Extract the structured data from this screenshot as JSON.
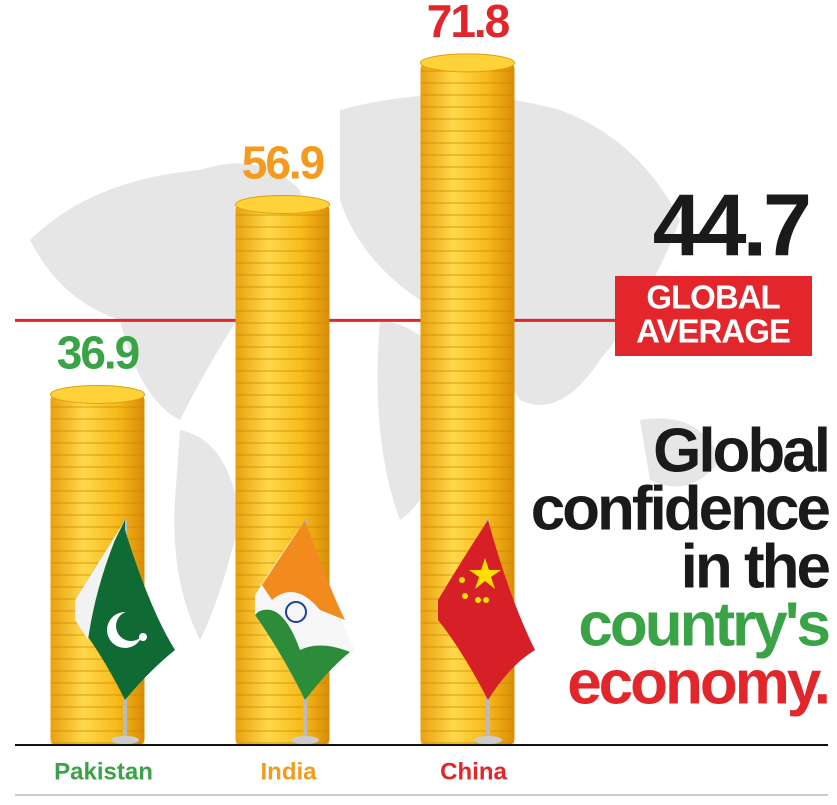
{
  "chart_data": {
    "type": "bar",
    "categories": [
      "Pakistan",
      "India",
      "China"
    ],
    "values": [
      36.9,
      56.9,
      71.8
    ],
    "category_colors": [
      "#3aa346",
      "#f39a1f",
      "#e2262b"
    ],
    "ylim": [
      0,
      78
    ],
    "reference_line": {
      "value": 44.7,
      "label_lines": [
        "GLOBAL",
        "AVERAGE"
      ],
      "color": "#e2262b"
    },
    "title_lines": [
      {
        "text": "Global",
        "color": "#1a1a1a"
      },
      {
        "text": "confidence",
        "color": "#1a1a1a"
      },
      {
        "text": "in the",
        "color": "#1a1a1a"
      },
      {
        "text": "country's",
        "color": "#3aa346"
      },
      {
        "text": "economy.",
        "color": "#e2262b"
      }
    ]
  }
}
